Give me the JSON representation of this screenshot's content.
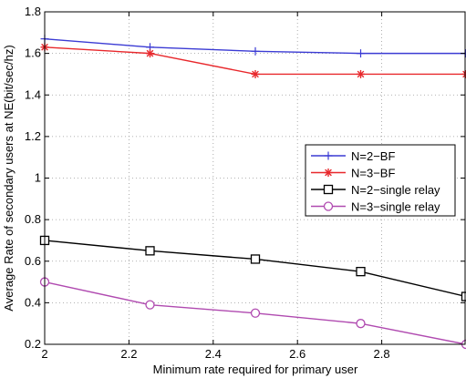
{
  "chart_data": {
    "type": "line",
    "title": "",
    "xlabel": "Minimum rate required for primary user",
    "ylabel": "Average Rate of secondary users at NE(bit/sec/hz)",
    "xlim": [
      2,
      3
    ],
    "ylim": [
      0.2,
      1.8
    ],
    "xticks": [
      2,
      2.2,
      2.4,
      2.6,
      2.8
    ],
    "xtick_labels": [
      "2",
      "2.2",
      "2.4",
      "2.6",
      "2.8"
    ],
    "yticks": [
      0.2,
      0.4,
      0.6,
      0.8,
      1,
      1.2,
      1.4,
      1.6,
      1.8
    ],
    "ytick_labels": [
      "0.2",
      "0.4",
      "0.6",
      "0.8",
      "1",
      "1.2",
      "1.4",
      "1.6",
      "1.8"
    ],
    "grid": true,
    "legend_position": "right-middle",
    "x": [
      2,
      2.25,
      2.5,
      2.75,
      3
    ],
    "series": [
      {
        "name": "N=2−BF",
        "values": [
          1.67,
          1.63,
          1.61,
          1.6,
          1.6
        ],
        "color": "#3b3bd4",
        "marker": "plus"
      },
      {
        "name": "N=3−BF",
        "values": [
          1.63,
          1.6,
          1.5,
          1.5,
          1.5
        ],
        "color": "#e8282c",
        "marker": "star"
      },
      {
        "name": "N=2−single relay",
        "values": [
          0.7,
          0.65,
          0.61,
          0.55,
          0.43
        ],
        "color": "#000000",
        "marker": "square"
      },
      {
        "name": "N=3−single relay",
        "values": [
          0.5,
          0.39,
          0.35,
          0.3,
          0.2
        ],
        "color": "#b04ab0",
        "marker": "circle"
      }
    ]
  }
}
